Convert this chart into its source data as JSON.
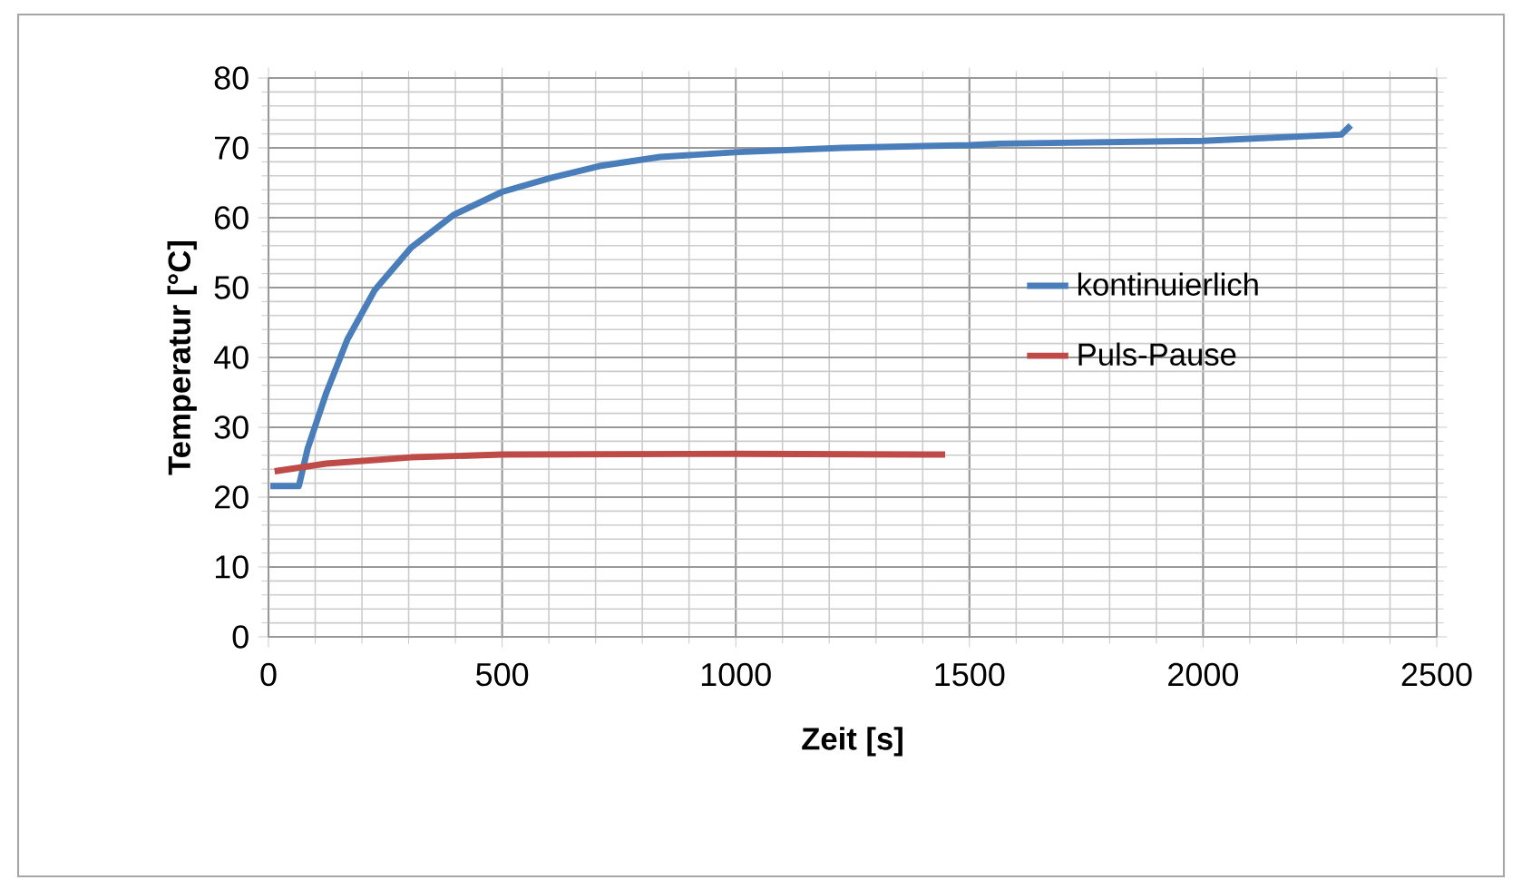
{
  "chart_data": {
    "type": "line",
    "xlabel": "Zeit [s]",
    "ylabel": "Temperatur [°C]",
    "xlim": [
      0,
      2500
    ],
    "ylim": [
      0,
      80
    ],
    "xticks": [
      0,
      500,
      1000,
      1500,
      2000,
      2500
    ],
    "yticks": [
      0,
      10,
      20,
      30,
      40,
      50,
      60,
      70,
      80
    ],
    "grid": true,
    "legend": "right",
    "marker": "none",
    "line_style": "solid",
    "series": [
      {
        "name": "kontinuierlich",
        "color": "#4a7ebb",
        "x": [
          4,
          65,
          84,
          123,
          169,
          227,
          305,
          396,
          500,
          604,
          708,
          838,
          1006,
          1227,
          1500,
          1564,
          2000,
          2296,
          2316
        ],
        "values": [
          21.6,
          21.6,
          27,
          34.8,
          42.6,
          49.6,
          55.7,
          60.4,
          63.7,
          65.7,
          67.4,
          68.7,
          69.4,
          70.0,
          70.4,
          70.6,
          71.0,
          71.9,
          73.2
        ]
      },
      {
        "name": "Puls-Pause",
        "color": "#be4b48",
        "x": [
          13,
          123,
          305,
          500,
          1006,
          1448
        ],
        "values": [
          23.7,
          24.8,
          25.7,
          26.1,
          26.2,
          26.1
        ]
      }
    ]
  }
}
